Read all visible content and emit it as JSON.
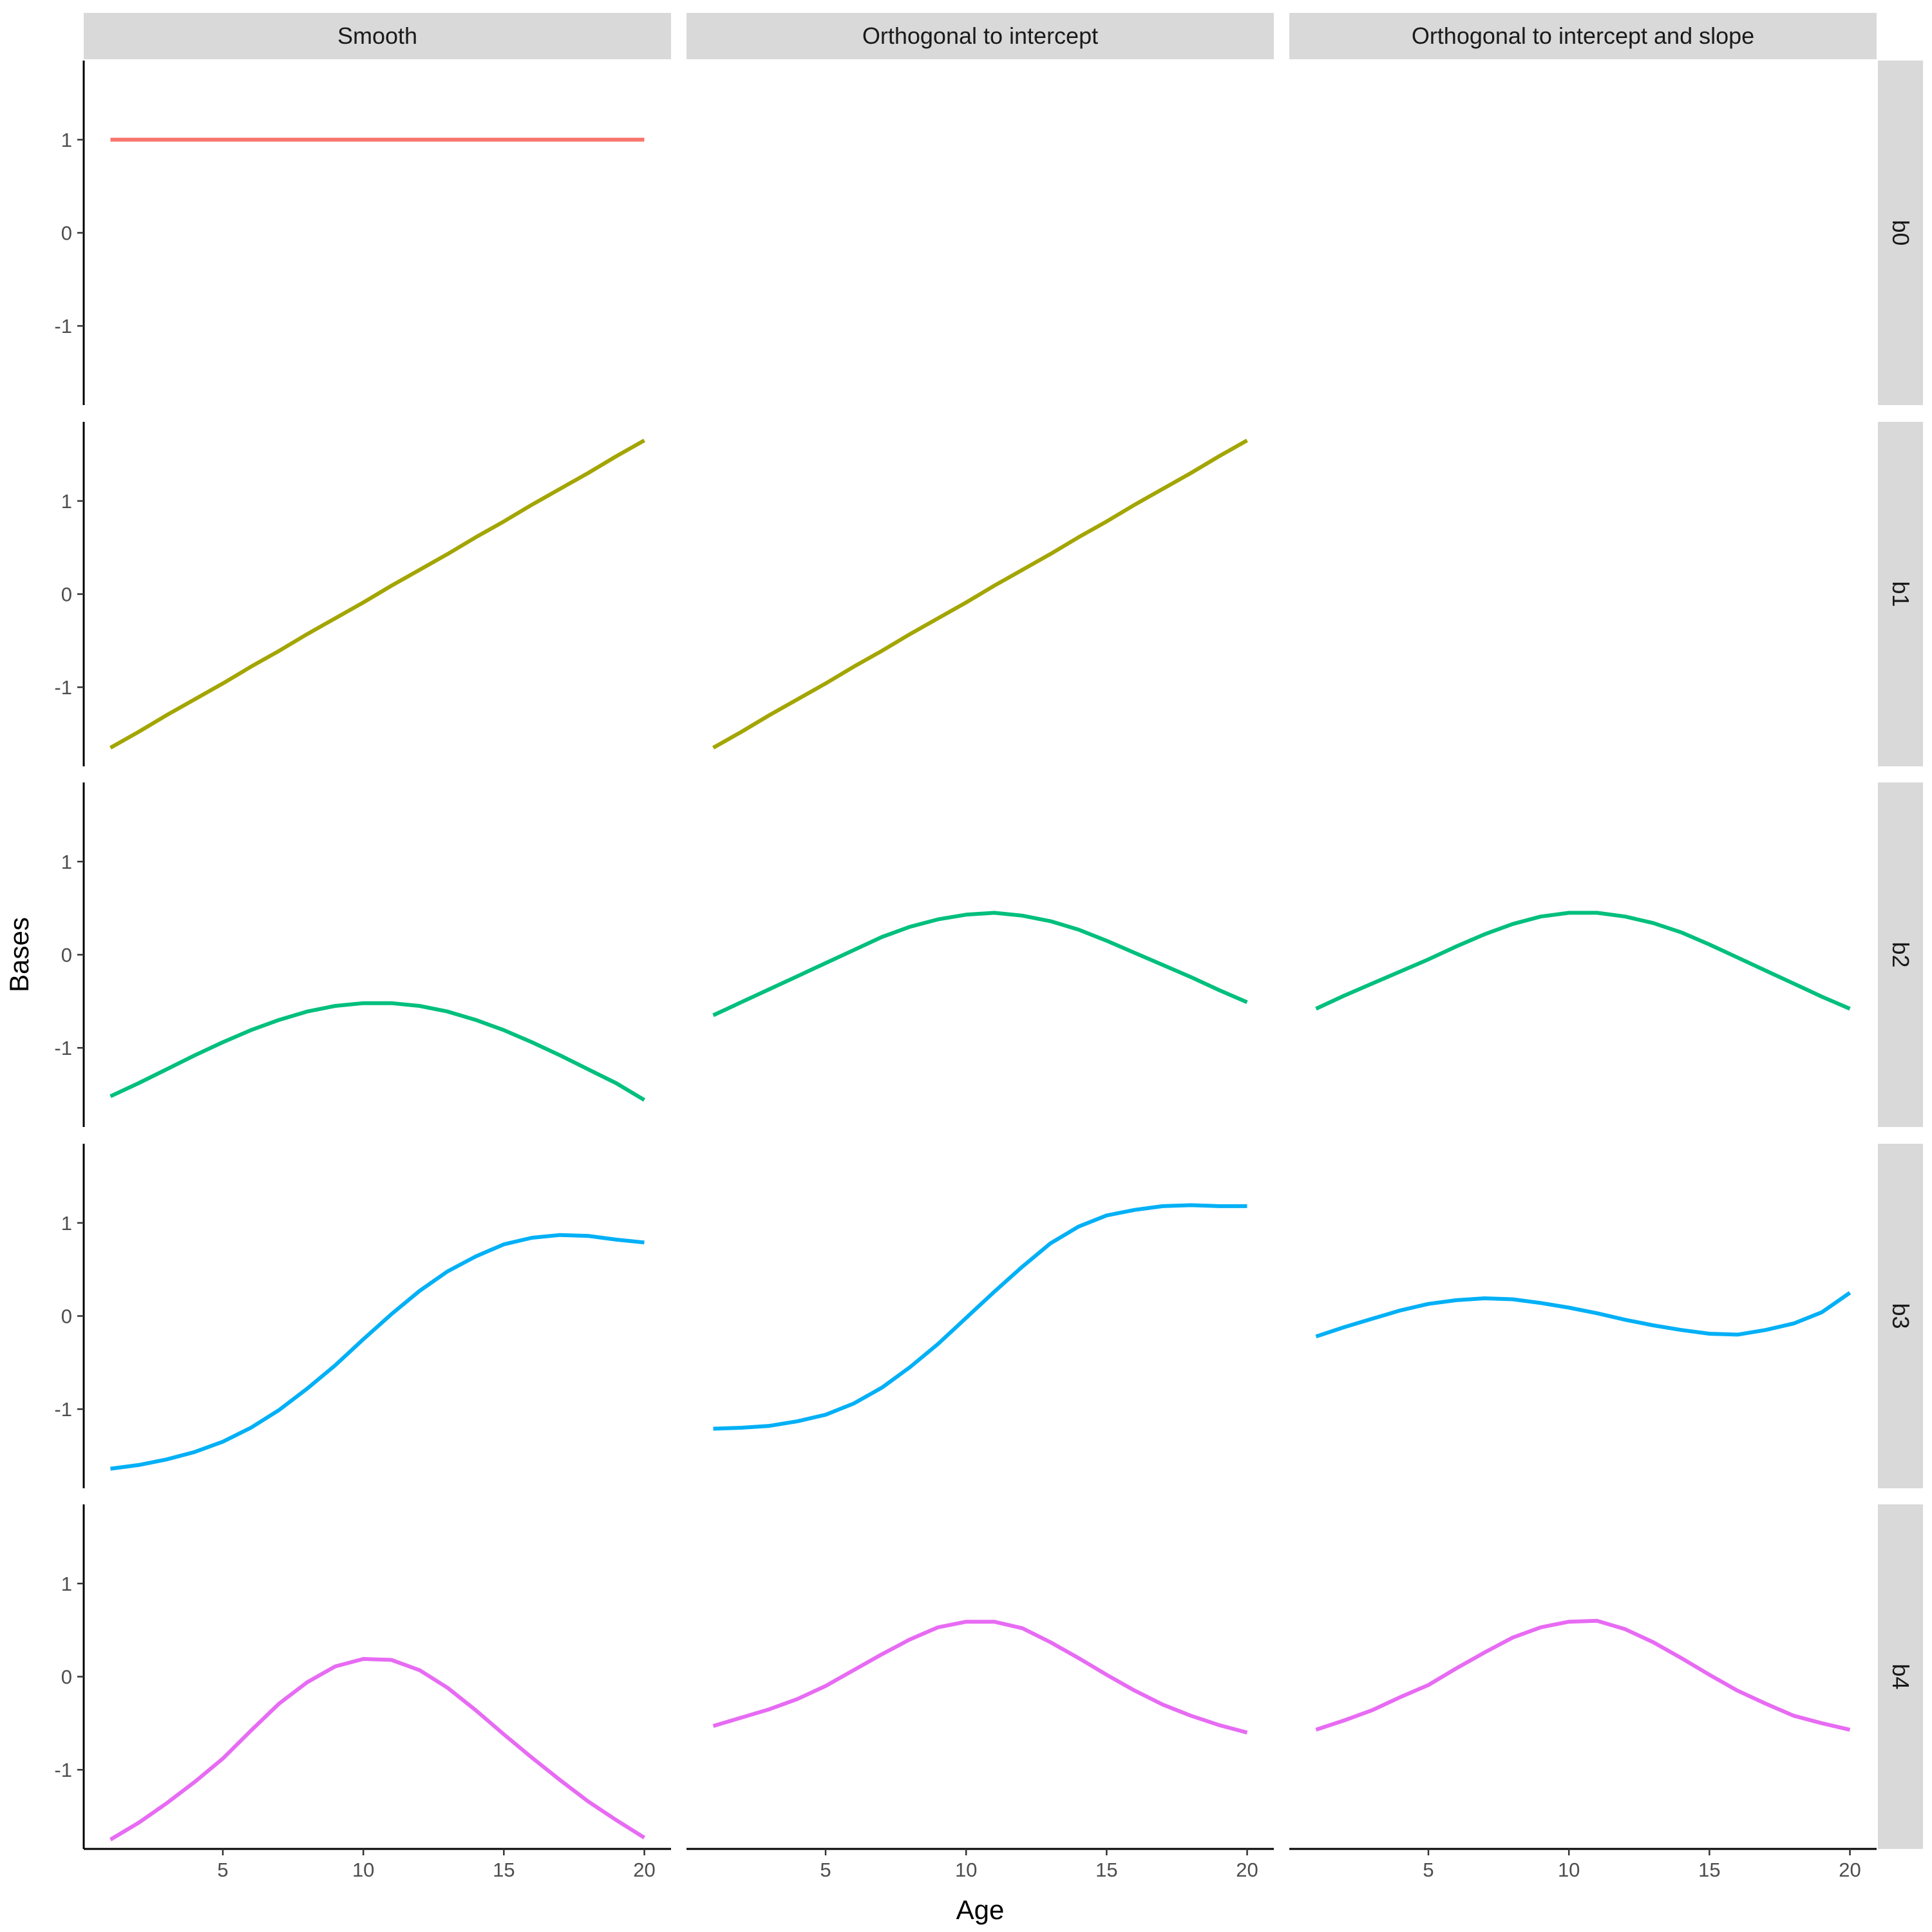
{
  "chart_data": {
    "type": "line",
    "facet_columns": [
      "Smooth",
      "Orthogonal to intercept",
      "Orthogonal to intercept and slope"
    ],
    "facet_rows": [
      "b0",
      "b1",
      "b2",
      "b3",
      "b4"
    ],
    "xlabel": "Age",
    "ylabel": "Bases",
    "x_ticks": [
      5,
      10,
      15,
      20
    ],
    "y_ticks": [
      1,
      0,
      -1
    ],
    "xlim": [
      0.05,
      20.95
    ],
    "ylim": [
      -1.85,
      1.85
    ],
    "grid": false,
    "legend": "none",
    "row_colors": {
      "b0": "#F8766D",
      "b1": "#A3A500",
      "b2": "#00BF7D",
      "b3": "#00B0F6",
      "b4": "#E76BF3"
    },
    "strip_fill": "#D9D9D9",
    "x": [
      1,
      2,
      3,
      4,
      5,
      6,
      7,
      8,
      9,
      10,
      11,
      12,
      13,
      14,
      15,
      16,
      17,
      18,
      19,
      20
    ],
    "panels": [
      {
        "column": "Smooth",
        "row": "b0",
        "y": [
          1,
          1,
          1,
          1,
          1,
          1,
          1,
          1,
          1,
          1,
          1,
          1,
          1,
          1,
          1,
          1,
          1,
          1,
          1,
          1
        ]
      },
      {
        "column": "Smooth",
        "row": "b1",
        "y": [
          -1.65,
          -1.48,
          -1.3,
          -1.13,
          -0.96,
          -0.78,
          -0.61,
          -0.43,
          -0.26,
          -0.09,
          0.09,
          0.26,
          0.43,
          0.61,
          0.78,
          0.96,
          1.13,
          1.3,
          1.48,
          1.65
        ]
      },
      {
        "column": "Smooth",
        "row": "b2",
        "y": [
          -1.52,
          -1.38,
          -1.23,
          -1.08,
          -0.94,
          -0.81,
          -0.7,
          -0.61,
          -0.55,
          -0.52,
          -0.52,
          -0.55,
          -0.61,
          -0.7,
          -0.81,
          -0.94,
          -1.08,
          -1.23,
          -1.38,
          -1.56
        ]
      },
      {
        "column": "Smooth",
        "row": "b3",
        "y": [
          -1.64,
          -1.6,
          -1.54,
          -1.46,
          -1.35,
          -1.2,
          -1.01,
          -0.78,
          -0.53,
          -0.25,
          0.02,
          0.27,
          0.48,
          0.64,
          0.77,
          0.84,
          0.87,
          0.86,
          0.82,
          0.79
        ]
      },
      {
        "column": "Smooth",
        "row": "b4",
        "y": [
          -1.75,
          -1.57,
          -1.36,
          -1.13,
          -0.88,
          -0.58,
          -0.29,
          -0.06,
          0.11,
          0.19,
          0.18,
          0.07,
          -0.12,
          -0.36,
          -0.62,
          -0.87,
          -1.11,
          -1.34,
          -1.54,
          -1.73
        ]
      },
      {
        "column": "Orthogonal to intercept",
        "row": "b1",
        "y": [
          -1.65,
          -1.48,
          -1.3,
          -1.13,
          -0.96,
          -0.78,
          -0.61,
          -0.43,
          -0.26,
          -0.09,
          0.09,
          0.26,
          0.43,
          0.61,
          0.78,
          0.96,
          1.13,
          1.3,
          1.48,
          1.65
        ]
      },
      {
        "column": "Orthogonal to intercept",
        "row": "b2",
        "y": [
          -0.65,
          -0.51,
          -0.37,
          -0.23,
          -0.09,
          0.05,
          0.19,
          0.3,
          0.38,
          0.43,
          0.45,
          0.42,
          0.36,
          0.27,
          0.15,
          0.02,
          -0.11,
          -0.24,
          -0.38,
          -0.51
        ]
      },
      {
        "column": "Orthogonal to intercept",
        "row": "b3",
        "y": [
          -1.21,
          -1.2,
          -1.18,
          -1.13,
          -1.06,
          -0.94,
          -0.77,
          -0.55,
          -0.3,
          -0.02,
          0.26,
          0.53,
          0.78,
          0.96,
          1.08,
          1.14,
          1.18,
          1.19,
          1.18,
          1.18
        ]
      },
      {
        "column": "Orthogonal to intercept",
        "row": "b4",
        "y": [
          -0.53,
          -0.44,
          -0.35,
          -0.24,
          -0.1,
          0.07,
          0.24,
          0.4,
          0.53,
          0.59,
          0.59,
          0.52,
          0.37,
          0.2,
          0.02,
          -0.15,
          -0.3,
          -0.42,
          -0.52,
          -0.6
        ]
      },
      {
        "column": "Orthogonal to intercept and slope",
        "row": "b2",
        "y": [
          -0.58,
          -0.44,
          -0.31,
          -0.18,
          -0.05,
          0.09,
          0.22,
          0.33,
          0.41,
          0.45,
          0.45,
          0.41,
          0.34,
          0.24,
          0.11,
          -0.03,
          -0.17,
          -0.31,
          -0.45,
          -0.58
        ]
      },
      {
        "column": "Orthogonal to intercept and slope",
        "row": "b3",
        "y": [
          -0.22,
          -0.12,
          -0.03,
          0.06,
          0.13,
          0.17,
          0.19,
          0.18,
          0.14,
          0.09,
          0.03,
          -0.04,
          -0.1,
          -0.15,
          -0.19,
          -0.2,
          -0.15,
          -0.08,
          0.04,
          0.25
        ]
      },
      {
        "column": "Orthogonal to intercept and slope",
        "row": "b4",
        "y": [
          -0.57,
          -0.47,
          -0.36,
          -0.22,
          -0.09,
          0.09,
          0.26,
          0.42,
          0.53,
          0.59,
          0.6,
          0.51,
          0.37,
          0.2,
          0.02,
          -0.15,
          -0.29,
          -0.42,
          -0.5,
          -0.57
        ]
      }
    ]
  }
}
